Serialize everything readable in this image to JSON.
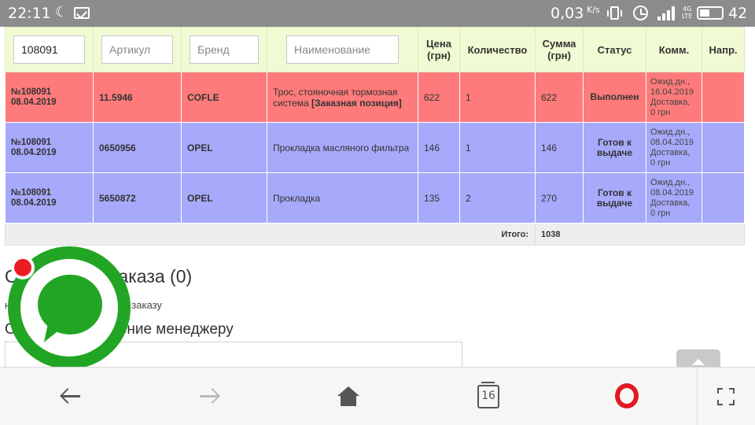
{
  "status_bar": {
    "time": "22:11",
    "net_speed": "0,03",
    "net_unit": "K/s",
    "network_type_top": "4G",
    "network_type_bottom": "LTE",
    "battery_level": "42",
    "icons": [
      "moon-icon",
      "message-icon",
      "vibrate-icon",
      "alarm-icon",
      "signal-icon",
      "battery-icon"
    ]
  },
  "orders_table": {
    "filters": {
      "order_value": "108091",
      "article_placeholder": "Артикул",
      "brand_placeholder": "Бренд",
      "name_placeholder": "Наименование"
    },
    "headers": {
      "price": "Цена (грн)",
      "quantity": "Количество",
      "sum": "Сумма (грн)",
      "status": "Статус",
      "comment": "Комм.",
      "direction": "Напр."
    },
    "rows": [
      {
        "order_no": "№108091",
        "date": "08.04.2019",
        "article": "11.5946",
        "brand": "COFLE",
        "name": "Трос, стояночная тормозная система",
        "name_tag": "[Заказная позиция]",
        "price": "622",
        "quantity": "1",
        "sum": "622",
        "status": "Выполнен",
        "comment_1": "Ожид.дн.,",
        "comment_2": "16.04.2019",
        "comment_3": "Доставка,",
        "comment_4": "0 грн",
        "row_color": "#ff7b7b"
      },
      {
        "order_no": "№108091",
        "date": "08.04.2019",
        "article": "0650956",
        "brand": "OPEL",
        "name": "Прокладка масляного фильтра",
        "name_tag": "",
        "price": "146",
        "quantity": "1",
        "sum": "146",
        "status": "Готов к выдаче",
        "comment_1": "Ожид.дн.,",
        "comment_2": "08.04.2019",
        "comment_3": "Доставка,",
        "comment_4": "0 грн",
        "row_color": "#a7a9fb"
      },
      {
        "order_no": "№108091",
        "date": "08.04.2019",
        "article": "5650872",
        "brand": "OPEL",
        "name": "Прокладка",
        "name_tag": "",
        "price": "135",
        "quantity": "2",
        "sum": "270",
        "status": "Готов к выдаче",
        "comment_1": "Ожид.дн.,",
        "comment_2": "08.04.2019",
        "comment_3": "Доставка,",
        "comment_4": "0 грн",
        "row_color": "#a7a9fb"
      }
    ],
    "total_label": "Итого:",
    "total_value": "1038"
  },
  "section": {
    "title_partial": "О",
    "title_rest": "заказа (0)",
    "subtitle_start": "н",
    "subtitle_rest": "у заказу",
    "message_label_start": "О",
    "message_label_rest": "ение менеджеру"
  },
  "bottom_bar": {
    "tabs_count": "16"
  },
  "colors": {
    "header_bg": "#f0fbd4",
    "row_done": "#ff7b7b",
    "row_ready": "#a7a9fb",
    "chat_green": "#22a524",
    "notification_red": "#ed1c24",
    "opera_red": "#e11a22"
  }
}
